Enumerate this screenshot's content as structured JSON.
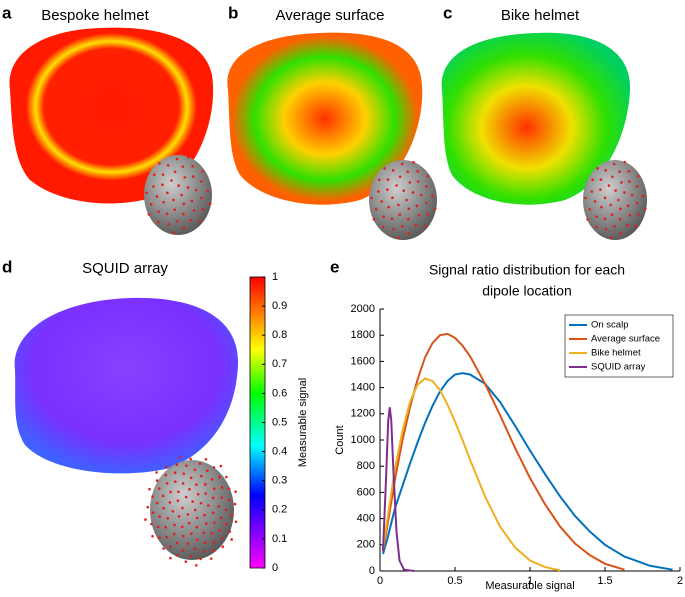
{
  "panels": [
    {
      "label": "a",
      "title": "Bespoke helmet"
    },
    {
      "label": "b",
      "title": "Average surface"
    },
    {
      "label": "c",
      "title": "Bike helmet"
    },
    {
      "label": "d",
      "title": "SQUID array"
    },
    {
      "label": "e"
    }
  ],
  "chart_data": [
    {
      "type": "colorbar",
      "ylabel": "Measurable signal",
      "ylim": [
        0,
        1
      ],
      "yticks": [
        0,
        0.1,
        0.2,
        0.3,
        0.4,
        0.5,
        0.6,
        0.7,
        0.8,
        0.9,
        1
      ]
    },
    {
      "type": "line",
      "title": [
        "Signal ratio distribution for each",
        "dipole location"
      ],
      "xlabel": "Measurable signal",
      "ylabel": "Count",
      "xlim": [
        0,
        2
      ],
      "xticks": [
        0,
        0.5,
        1,
        1.5,
        2
      ],
      "ylim": [
        0,
        2000
      ],
      "yticks": [
        0,
        200,
        400,
        600,
        800,
        1000,
        1200,
        1400,
        1600,
        1800,
        2000
      ],
      "legend": "upper right",
      "series": [
        {
          "name": "On scalp",
          "color": "#0072bd",
          "x": [
            0.02,
            0.05,
            0.1,
            0.15,
            0.2,
            0.25,
            0.3,
            0.35,
            0.4,
            0.45,
            0.5,
            0.55,
            0.6,
            0.7,
            0.8,
            0.9,
            1.0,
            1.1,
            1.2,
            1.3,
            1.4,
            1.5,
            1.63,
            1.8,
            1.95
          ],
          "values": [
            130,
            250,
            480,
            650,
            820,
            980,
            1130,
            1260,
            1370,
            1450,
            1500,
            1510,
            1500,
            1430,
            1290,
            1110,
            920,
            740,
            570,
            420,
            300,
            200,
            110,
            40,
            10
          ]
        },
        {
          "name": "Average surface",
          "color": "#d95319",
          "x": [
            0.02,
            0.05,
            0.1,
            0.15,
            0.2,
            0.25,
            0.3,
            0.35,
            0.4,
            0.45,
            0.5,
            0.55,
            0.6,
            0.7,
            0.8,
            0.9,
            1.0,
            1.1,
            1.2,
            1.3,
            1.4,
            1.5,
            1.63
          ],
          "values": [
            150,
            350,
            700,
            1000,
            1250,
            1460,
            1630,
            1740,
            1800,
            1810,
            1780,
            1720,
            1640,
            1430,
            1190,
            940,
            710,
            510,
            340,
            210,
            120,
            55,
            10
          ]
        },
        {
          "name": "Bike helmet",
          "color": "#edb120",
          "x": [
            0.02,
            0.05,
            0.1,
            0.15,
            0.2,
            0.25,
            0.3,
            0.35,
            0.4,
            0.45,
            0.5,
            0.55,
            0.6,
            0.7,
            0.8,
            0.9,
            1.0,
            1.1,
            1.2
          ],
          "values": [
            170,
            400,
            780,
            1070,
            1290,
            1420,
            1470,
            1450,
            1380,
            1270,
            1140,
            1000,
            850,
            570,
            340,
            180,
            80,
            30,
            5
          ]
        },
        {
          "name": "SQUID array",
          "color": "#7e2f8e",
          "x": [
            0.02,
            0.04,
            0.055,
            0.065,
            0.075,
            0.09,
            0.11,
            0.13,
            0.16,
            0.23
          ],
          "values": [
            150,
            700,
            1150,
            1250,
            1150,
            750,
            300,
            80,
            10,
            0
          ]
        }
      ]
    }
  ]
}
